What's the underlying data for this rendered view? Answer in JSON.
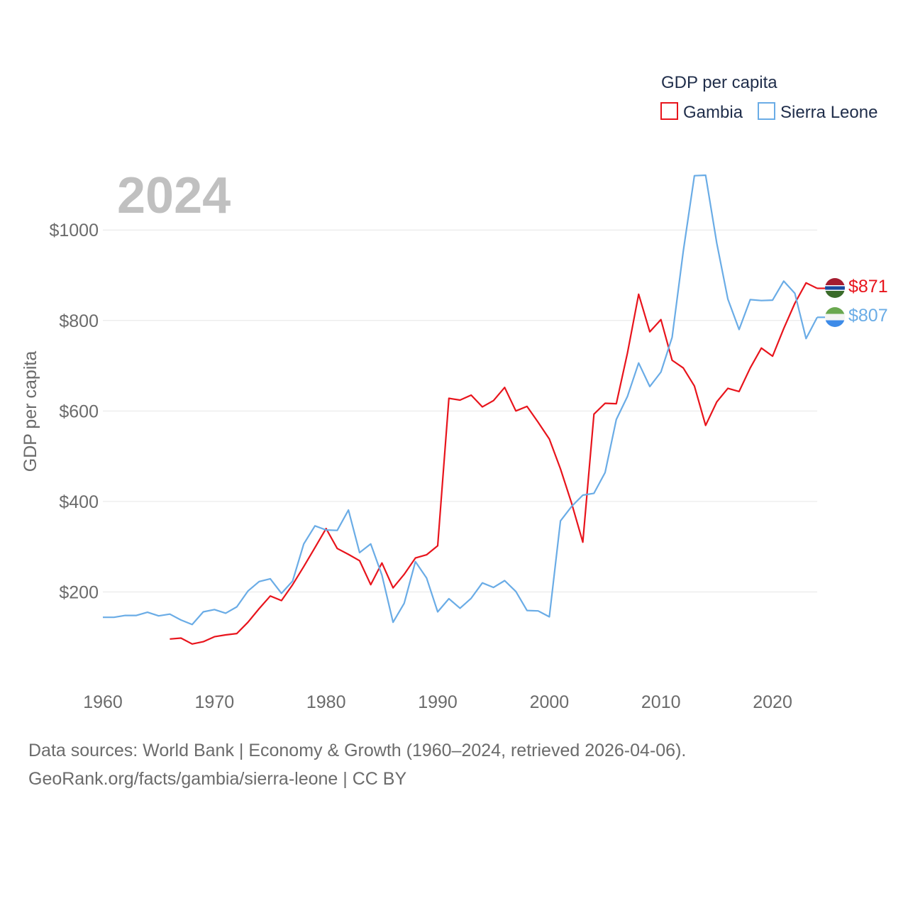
{
  "chart_data": {
    "type": "line",
    "title": "GDP per capita",
    "year_label": "2024",
    "ylabel": "GDP per capita",
    "xlim": [
      1960,
      2024
    ],
    "ylim": [
      0,
      1150
    ],
    "x_ticks": [
      1960,
      1970,
      1980,
      1990,
      2000,
      2010,
      2020
    ],
    "y_ticks": [
      {
        "value": 200,
        "label": "$200"
      },
      {
        "value": 400,
        "label": "$400"
      },
      {
        "value": 600,
        "label": "$600"
      },
      {
        "value": 800,
        "label": "$800"
      },
      {
        "value": 1000,
        "label": "$1000"
      }
    ],
    "series": [
      {
        "name": "Gambia",
        "color": "#e8141c",
        "end_label": "$871",
        "flag": "gambia",
        "start_year": 1966,
        "values": [
          96,
          98,
          85,
          90,
          101,
          105,
          108,
          133,
          163,
          191,
          181,
          216,
          256,
          298,
          340,
          296,
          283,
          269,
          216,
          264,
          209,
          239,
          275,
          282,
          302,
          628,
          624,
          635,
          609,
          623,
          652,
          600,
          610,
          575,
          538,
          472,
          396,
          310,
          593,
          617,
          616,
          728,
          858,
          775,
          802,
          712,
          695,
          655,
          568,
          620,
          650,
          643,
          695,
          739,
          721,
          782,
          838,
          883,
          871
        ]
      },
      {
        "name": "Sierra Leone",
        "color": "#6aace6",
        "end_label": "$807",
        "flag": "sierra-leone",
        "start_year": 1960,
        "values": [
          144,
          144,
          148,
          148,
          155,
          147,
          151,
          138,
          128,
          156,
          161,
          153,
          167,
          202,
          223,
          229,
          197,
          224,
          306,
          346,
          337,
          336,
          381,
          287,
          306,
          237,
          133,
          175,
          267,
          231,
          156,
          185,
          164,
          186,
          220,
          210,
          225,
          201,
          159,
          158,
          145,
          357,
          389,
          414,
          418,
          464,
          581,
          632,
          706,
          654,
          686,
          763,
          953,
          1120,
          1121,
          971,
          847,
          780,
          846,
          844,
          845,
          887,
          860,
          760,
          807
        ]
      }
    ]
  },
  "footer": {
    "sources_line": "Data sources: World Bank | Economy & Growth (1960–2024, retrieved 2026-04-06).",
    "url_line": "GeoRank.org/facts/gambia/sierra-leone | CC BY"
  }
}
